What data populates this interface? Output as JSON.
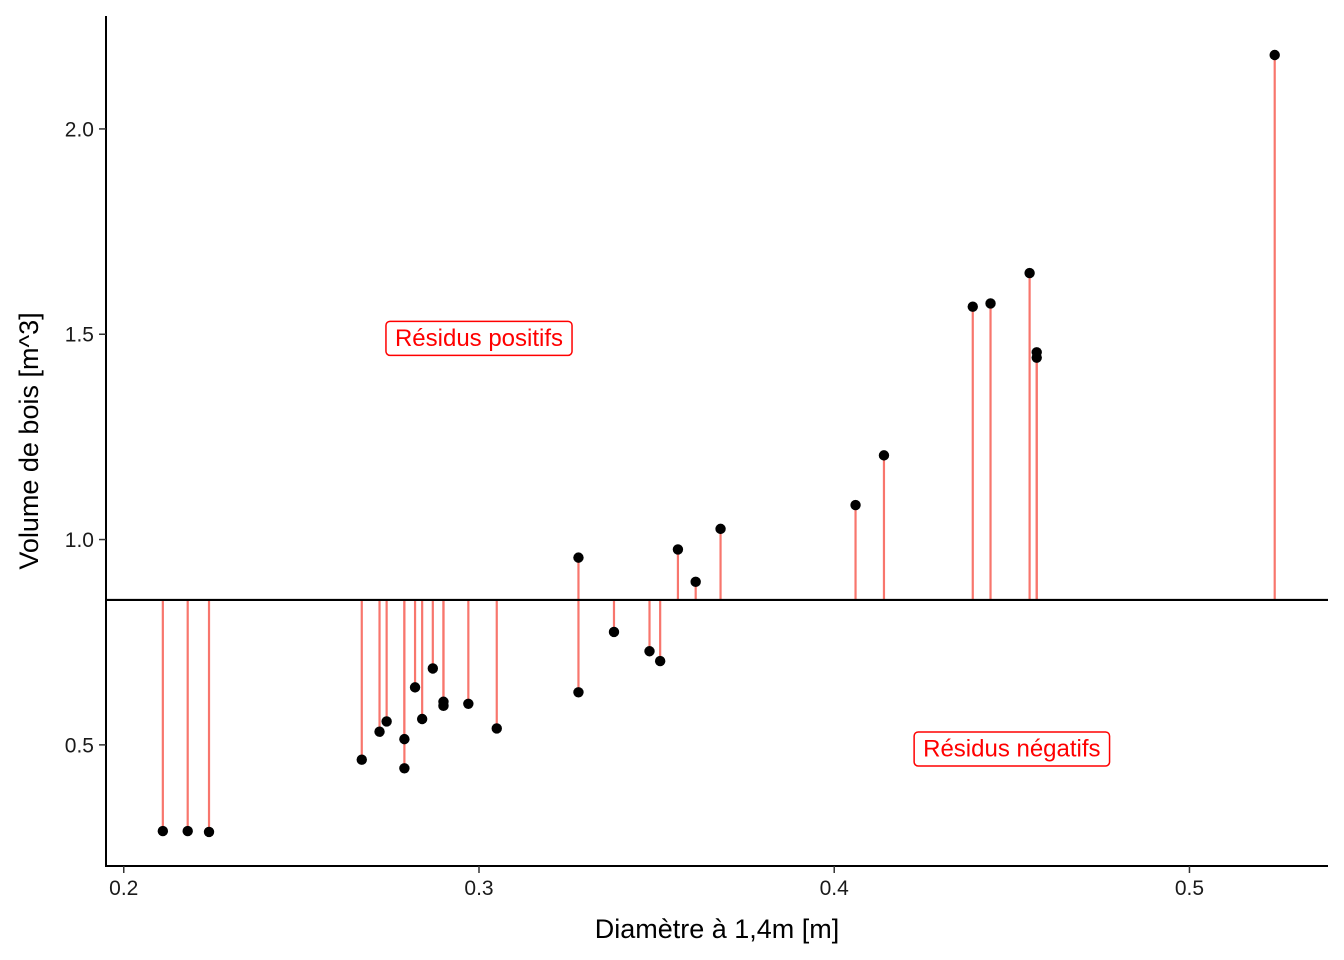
{
  "chart_data": {
    "type": "scatter",
    "xlabel": "Diamètre à 1,4m  [m]",
    "ylabel": "Volume de bois  [m^3]",
    "xlim": [
      0.195,
      0.539
    ],
    "ylim": [
      0.205,
      2.275
    ],
    "x_ticks": [
      {
        "value": 0.2,
        "label": "0.2"
      },
      {
        "value": 0.3,
        "label": "0.3"
      },
      {
        "value": 0.4,
        "label": "0.4"
      },
      {
        "value": 0.5,
        "label": "0.5"
      }
    ],
    "y_ticks": [
      {
        "value": 0.5,
        "label": "0.5"
      },
      {
        "value": 1.0,
        "label": "1.0"
      },
      {
        "value": 1.5,
        "label": "1.5"
      },
      {
        "value": 2.0,
        "label": "2.0"
      }
    ],
    "grid": false,
    "reference_line": {
      "y": 0.853
    },
    "residual_color": "#F8766D",
    "point_color": "#000000",
    "points": [
      {
        "x": 0.211,
        "y": 0.29
      },
      {
        "x": 0.218,
        "y": 0.29
      },
      {
        "x": 0.224,
        "y": 0.288
      },
      {
        "x": 0.267,
        "y": 0.464
      },
      {
        "x": 0.272,
        "y": 0.532
      },
      {
        "x": 0.274,
        "y": 0.557
      },
      {
        "x": 0.279,
        "y": 0.514
      },
      {
        "x": 0.279,
        "y": 0.443
      },
      {
        "x": 0.282,
        "y": 0.64
      },
      {
        "x": 0.284,
        "y": 0.563
      },
      {
        "x": 0.287,
        "y": 0.686
      },
      {
        "x": 0.29,
        "y": 0.605
      },
      {
        "x": 0.29,
        "y": 0.595
      },
      {
        "x": 0.297,
        "y": 0.6
      },
      {
        "x": 0.305,
        "y": 0.54
      },
      {
        "x": 0.328,
        "y": 0.956
      },
      {
        "x": 0.328,
        "y": 0.628
      },
      {
        "x": 0.338,
        "y": 0.775
      },
      {
        "x": 0.348,
        "y": 0.728
      },
      {
        "x": 0.351,
        "y": 0.704
      },
      {
        "x": 0.356,
        "y": 0.976
      },
      {
        "x": 0.361,
        "y": 0.897
      },
      {
        "x": 0.368,
        "y": 1.026
      },
      {
        "x": 0.406,
        "y": 1.084
      },
      {
        "x": 0.414,
        "y": 1.205
      },
      {
        "x": 0.439,
        "y": 1.567
      },
      {
        "x": 0.444,
        "y": 1.575
      },
      {
        "x": 0.455,
        "y": 1.649
      },
      {
        "x": 0.457,
        "y": 1.456
      },
      {
        "x": 0.457,
        "y": 1.443
      },
      {
        "x": 0.524,
        "y": 2.18
      }
    ],
    "annotations": [
      {
        "text": "Résidus positifs",
        "x": 0.3,
        "y": 1.49,
        "color": "#FF0000"
      },
      {
        "text": "Résidus négatifs",
        "x": 0.45,
        "y": 0.49,
        "color": "#FF0000"
      }
    ]
  }
}
